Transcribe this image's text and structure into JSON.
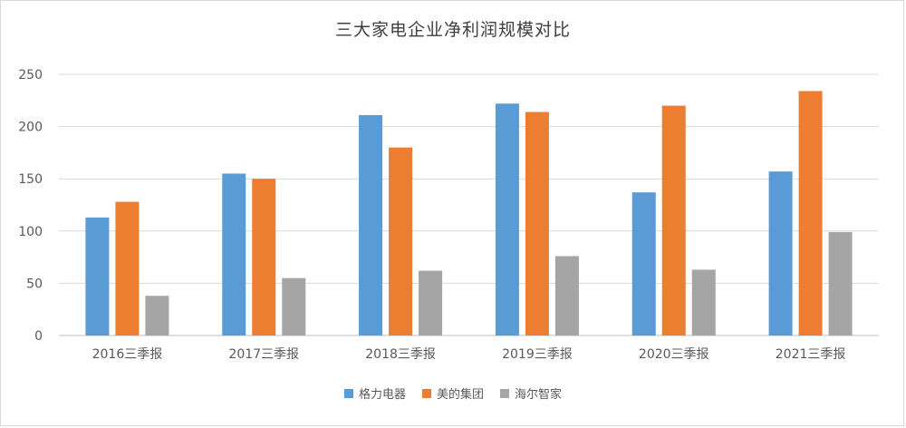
{
  "chart_data": {
    "type": "bar",
    "title": "三大家电企业净利润规模对比",
    "categories": [
      "2016三季报",
      "2017三季报",
      "2018三季报",
      "2019三季报",
      "2020三季报",
      "2021三季报"
    ],
    "series": [
      {
        "name": "格力电器",
        "color": "#5b9bd5",
        "values": [
          113,
          155,
          211,
          222,
          137,
          157
        ]
      },
      {
        "name": "美的集团",
        "color": "#ed7d31",
        "values": [
          128,
          150,
          180,
          214,
          220,
          234
        ]
      },
      {
        "name": "海尔智家",
        "color": "#a5a5a5",
        "values": [
          38,
          55,
          62,
          76,
          63,
          99
        ]
      }
    ],
    "ylim": [
      0,
      250
    ],
    "yticks": [
      0,
      50,
      100,
      150,
      200,
      250
    ],
    "grid": true,
    "legend": "bottom"
  }
}
